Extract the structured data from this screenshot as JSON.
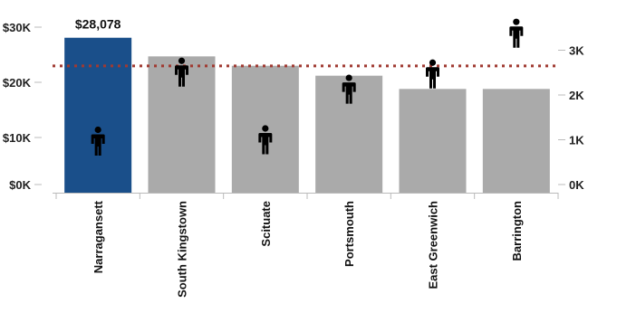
{
  "chart_data": {
    "type": "bar",
    "categories": [
      "Narragansett",
      "South Kingstown",
      "Scituate",
      "Portsmouth",
      "East Greenwich",
      "Barrington"
    ],
    "series": [
      {
        "values": [
          28078,
          24700,
          23000,
          21200,
          18800,
          18800
        ]
      },
      {
        "values": [
          980,
          2520,
          1010,
          2140,
          2480,
          3390
        ]
      }
    ],
    "highlighted_category": "Narragansett",
    "data_labels": [
      {
        "category": "Narragansett",
        "text": "$28,078"
      }
    ],
    "reference_line": {
      "axis": "right",
      "value": 2650,
      "style": "dotted"
    },
    "y_left": {
      "ticks": [
        0,
        10000,
        20000,
        30000
      ],
      "tick_labels": [
        "$0K",
        "$10K",
        "$20K",
        "$30K"
      ],
      "ylim": [
        0,
        30000
      ]
    },
    "y_right": {
      "ticks": [
        0,
        1000,
        2000,
        3000
      ],
      "tick_labels": [
        "0K",
        "1K",
        "2K",
        "3K"
      ],
      "ylim": [
        0,
        3400
      ]
    },
    "grid": false,
    "colors": {
      "highlight": "#1a4f8a",
      "bar": "#aaaaaa",
      "reference_line": "#a03a32",
      "marker": "#000000",
      "axis": "#bbbbbb"
    },
    "marker_icon": "person-icon"
  }
}
